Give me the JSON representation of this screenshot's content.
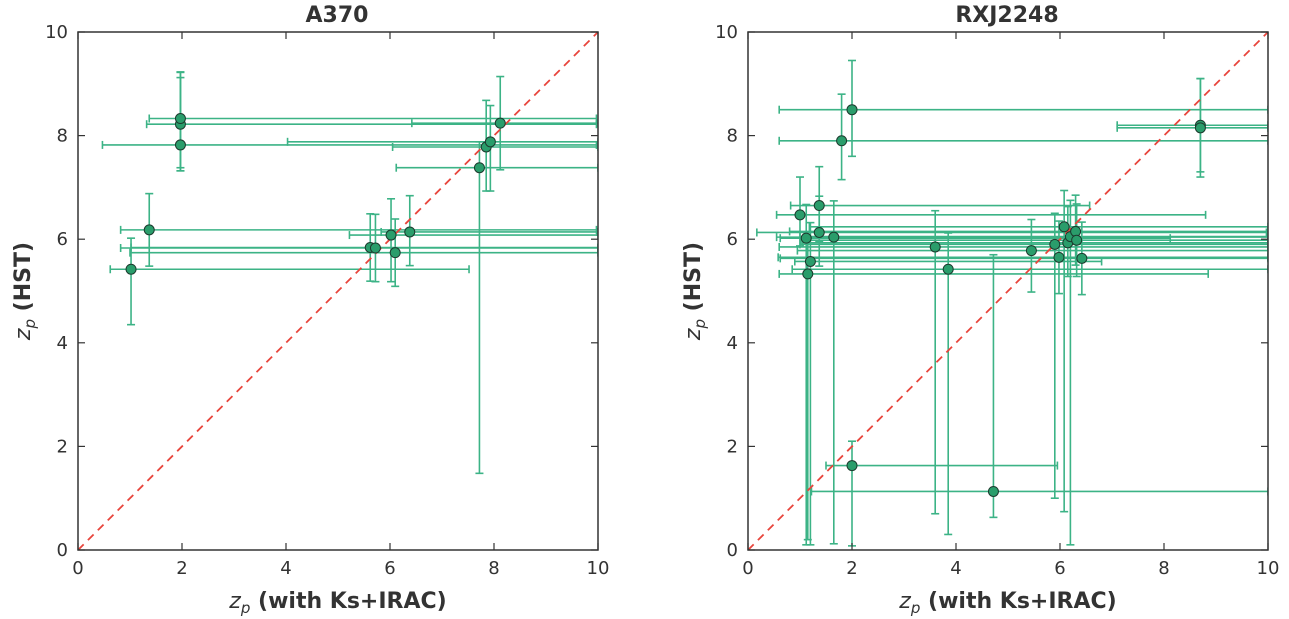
{
  "chart_data": [
    {
      "type": "scatter",
      "title": "A370",
      "xlabel": {
        "symbol": "z",
        "sub": "p",
        "text": " (with Ks+IRAC)"
      },
      "ylabel": {
        "symbol": "z",
        "sub": "p",
        "text": " (HST)"
      },
      "xlim": [
        0,
        10
      ],
      "ylim": [
        0,
        10
      ],
      "xticks": [
        0,
        2,
        4,
        6,
        8,
        10
      ],
      "yticks": [
        0,
        2,
        4,
        6,
        8,
        10
      ],
      "reference_line": "y=x",
      "colors": {
        "point": "#2a9d6b",
        "errorbar": "#3cb386",
        "reference": "#e8453c"
      },
      "points": [
        {
          "x": 1.97,
          "y": 8.22,
          "xerr": [
            0.65,
            8.0
          ],
          "yerr": [
            0.9,
            1.0
          ]
        },
        {
          "x": 1.97,
          "y": 8.33,
          "xerr": [
            0.6,
            8.0
          ],
          "yerr": [
            0.95,
            0.9
          ]
        },
        {
          "x": 1.97,
          "y": 7.82,
          "xerr": [
            1.5,
            8.0
          ],
          "yerr": [
            0.5,
            1.3
          ]
        },
        {
          "x": 1.37,
          "y": 6.18,
          "xerr": [
            0.55,
            8.6
          ],
          "yerr": [
            0.7,
            0.7
          ]
        },
        {
          "x": 1.02,
          "y": 5.42,
          "xerr": [
            0.4,
            6.5
          ],
          "yerr": [
            1.07,
            0.6
          ]
        },
        {
          "x": 5.62,
          "y": 5.84,
          "xerr": [
            4.6,
            4.4
          ],
          "yerr": [
            0.65,
            0.65
          ]
        },
        {
          "x": 5.72,
          "y": 5.83,
          "xerr": [
            4.9,
            4.3
          ],
          "yerr": [
            0.65,
            0.65
          ]
        },
        {
          "x": 6.02,
          "y": 6.08,
          "xerr": [
            0.8,
            3.98
          ],
          "yerr": [
            0.9,
            0.7
          ]
        },
        {
          "x": 6.1,
          "y": 5.74,
          "xerr": [
            5.1,
            3.9
          ],
          "yerr": [
            0.65,
            0.65
          ]
        },
        {
          "x": 6.38,
          "y": 6.14,
          "xerr": [
            0.55,
            3.6
          ],
          "yerr": [
            0.65,
            0.7
          ]
        },
        {
          "x": 7.72,
          "y": 7.38,
          "xerr": [
            1.6,
            2.28
          ],
          "yerr": [
            5.9,
            0.5
          ]
        },
        {
          "x": 7.85,
          "y": 7.78,
          "xerr": [
            1.8,
            2.15
          ],
          "yerr": [
            0.85,
            0.9
          ]
        },
        {
          "x": 7.93,
          "y": 7.88,
          "xerr": [
            3.9,
            2.07
          ],
          "yerr": [
            0.95,
            0.7
          ]
        },
        {
          "x": 8.12,
          "y": 8.24,
          "xerr": [
            1.7,
            1.88
          ],
          "yerr": [
            0.9,
            0.9
          ]
        }
      ]
    },
    {
      "type": "scatter",
      "title": "RXJ2248",
      "xlabel": {
        "symbol": "z",
        "sub": "p",
        "text": " (with Ks+IRAC)"
      },
      "ylabel": {
        "symbol": "z",
        "sub": "p",
        "text": " (HST)"
      },
      "xlim": [
        0,
        10
      ],
      "ylim": [
        0,
        10
      ],
      "xticks": [
        0,
        2,
        4,
        6,
        8,
        10
      ],
      "yticks": [
        0,
        2,
        4,
        6,
        8,
        10
      ],
      "reference_line": "y=x",
      "colors": {
        "point": "#2a9d6b",
        "errorbar": "#3cb386",
        "reference": "#e8453c"
      },
      "points": [
        {
          "x": 2.0,
          "y": 8.5,
          "xerr": [
            1.4,
            8.0
          ],
          "yerr": [
            0.9,
            0.95
          ]
        },
        {
          "x": 1.8,
          "y": 7.9,
          "xerr": [
            1.2,
            8.2
          ],
          "yerr": [
            0.75,
            0.9
          ]
        },
        {
          "x": 8.7,
          "y": 8.2,
          "xerr": [
            1.6,
            1.3
          ],
          "yerr": [
            1.0,
            0.9
          ]
        },
        {
          "x": 8.7,
          "y": 8.15,
          "xerr": [
            1.6,
            1.3
          ],
          "yerr": [
            0.85,
            0.95
          ]
        },
        {
          "x": 1.0,
          "y": 6.47,
          "xerr": [
            0.45,
            7.8
          ],
          "yerr": [
            0.6,
            0.73
          ]
        },
        {
          "x": 1.37,
          "y": 6.65,
          "xerr": [
            0.55,
            5.2
          ],
          "yerr": [
            0.7,
            0.75
          ]
        },
        {
          "x": 1.37,
          "y": 6.13,
          "xerr": [
            1.2,
            8.6
          ],
          "yerr": [
            0.65,
            0.7
          ]
        },
        {
          "x": 1.12,
          "y": 6.02,
          "xerr": [
            0.5,
            7.0
          ],
          "yerr": [
            5.92,
            0.65
          ]
        },
        {
          "x": 1.2,
          "y": 5.57,
          "xerr": [
            0.3,
            5.6
          ],
          "yerr": [
            5.47,
            0.75
          ]
        },
        {
          "x": 1.15,
          "y": 5.33,
          "xerr": [
            0.55,
            7.7
          ],
          "yerr": [
            5.13,
            0.7
          ]
        },
        {
          "x": 1.65,
          "y": 6.04,
          "xerr": [
            1.1,
            8.35
          ],
          "yerr": [
            5.92,
            0.7
          ]
        },
        {
          "x": 3.6,
          "y": 5.85,
          "xerr": [
            3.0,
            6.4
          ],
          "yerr": [
            5.15,
            0.7
          ]
        },
        {
          "x": 3.85,
          "y": 5.42,
          "xerr": [
            3.0,
            6.15
          ],
          "yerr": [
            5.12,
            0.7
          ]
        },
        {
          "x": 5.45,
          "y": 5.78,
          "xerr": [
            4.5,
            4.55
          ],
          "yerr": [
            0.8,
            0.6
          ]
        },
        {
          "x": 5.9,
          "y": 5.9,
          "xerr": [
            4.9,
            4.1
          ],
          "yerr": [
            4.9,
            0.6
          ]
        },
        {
          "x": 5.98,
          "y": 5.65,
          "xerr": [
            5.4,
            4.02
          ],
          "yerr": [
            0.7,
            0.7
          ]
        },
        {
          "x": 6.08,
          "y": 6.24,
          "xerr": [
            4.9,
            3.92
          ],
          "yerr": [
            5.5,
            0.7
          ]
        },
        {
          "x": 6.15,
          "y": 5.93,
          "xerr": [
            5.1,
            3.85
          ],
          "yerr": [
            0.65,
            0.7
          ]
        },
        {
          "x": 6.2,
          "y": 6.05,
          "xerr": [
            5.2,
            3.8
          ],
          "yerr": [
            5.95,
            0.7
          ]
        },
        {
          "x": 6.3,
          "y": 6.15,
          "xerr": [
            5.5,
            3.7
          ],
          "yerr": [
            0.65,
            0.7
          ]
        },
        {
          "x": 6.32,
          "y": 5.98,
          "xerr": [
            5.3,
            3.68
          ],
          "yerr": [
            0.7,
            0.7
          ]
        },
        {
          "x": 6.42,
          "y": 5.63,
          "xerr": [
            5.8,
            3.58
          ],
          "yerr": [
            0.7,
            0.7
          ]
        },
        {
          "x": 2.0,
          "y": 1.63,
          "xerr": [
            0.5,
            3.95
          ],
          "yerr": [
            1.55,
            0.47
          ]
        },
        {
          "x": 4.72,
          "y": 1.13,
          "xerr": [
            3.5,
            5.28
          ],
          "yerr": [
            0.5,
            4.57
          ]
        }
      ]
    }
  ]
}
